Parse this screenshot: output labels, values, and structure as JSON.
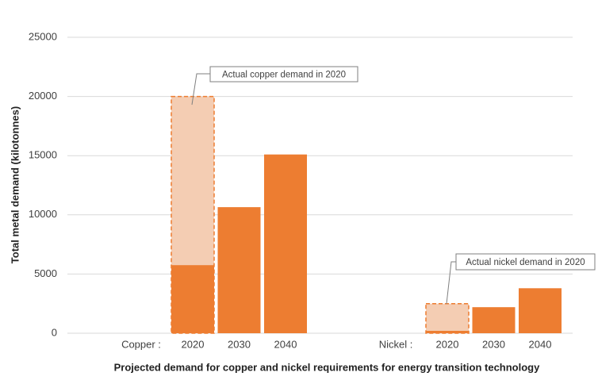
{
  "chart_data": {
    "type": "bar",
    "ylabel": "Total metal demand (kilotonnes)",
    "xlabel": "Projected demand for copper and nickel requirements for energy transition technology",
    "ylim": [
      0,
      25000
    ],
    "yticks": [
      0,
      5000,
      10000,
      15000,
      20000,
      25000
    ],
    "grid": true,
    "color": "#ed7d31",
    "actual_color": "#f4cdb3",
    "groups": [
      {
        "name": "Copper :",
        "categories": [
          "2020",
          "2030",
          "2040"
        ],
        "values": [
          5750,
          10650,
          15100
        ],
        "actual": {
          "value": 20000,
          "label": "Actual copper demand in 2020"
        }
      },
      {
        "name": "Nickel :",
        "categories": [
          "2020",
          "2030",
          "2040"
        ],
        "values": [
          200,
          2200,
          3800
        ],
        "actual": {
          "value": 2500,
          "label": "Actual nickel demand in 2020"
        }
      }
    ]
  }
}
